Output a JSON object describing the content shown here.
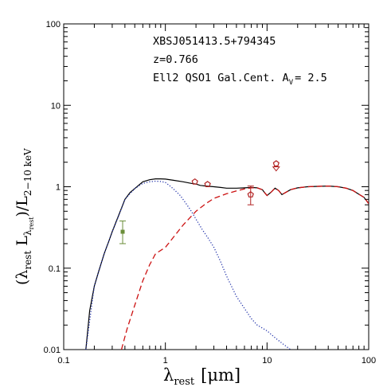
{
  "chart_data": {
    "type": "line",
    "title": "",
    "annotations": {
      "source_name": "XBSJ051413.5+794345",
      "redshift": "z=0.766",
      "model_prefix": "Ell2 QSO1 Gal.Cent. A",
      "model_sub": "V",
      "model_value": "= 2.5"
    },
    "xlabel": {
      "base": "λ",
      "sub": "rest",
      "unit": "[μm]"
    },
    "ylabel": {
      "open": "(λ",
      "sub1": "rest",
      "mid": " L",
      "sub2": "λ",
      "subsub2": "rest",
      "close": ")/L",
      "sub3": "2−10 keV"
    },
    "x_scale": "log",
    "y_scale": "log",
    "xlim": [
      0.1,
      100
    ],
    "ylim": [
      0.01,
      100
    ],
    "x_ticks": [
      {
        "value": 0.1,
        "label": "0.1"
      },
      {
        "value": 1,
        "label": "1"
      },
      {
        "value": 10,
        "label": "10"
      },
      {
        "value": 100,
        "label": "100"
      }
    ],
    "y_ticks": [
      {
        "value": 0.01,
        "label": "0.01"
      },
      {
        "value": 0.1,
        "label": "0.1"
      },
      {
        "value": 1,
        "label": "1"
      },
      {
        "value": 10,
        "label": "10"
      },
      {
        "value": 100,
        "label": "100"
      }
    ],
    "grid": false,
    "legend": "none",
    "series": [
      {
        "style": "solid",
        "color": "#000000",
        "x": [
          0.165,
          0.18,
          0.2,
          0.22,
          0.25,
          0.28,
          0.3,
          0.33,
          0.36,
          0.4,
          0.45,
          0.5,
          0.55,
          0.6,
          0.7,
          0.8,
          0.9,
          1.0,
          1.2,
          1.5,
          1.8,
          2.0,
          2.2,
          2.5,
          3.0,
          3.5,
          4.0,
          5.0,
          6.0,
          7.0,
          8.0,
          9.0,
          9.5,
          10.0,
          11.0,
          12.0,
          13.0,
          14.0,
          15.0,
          17.0,
          20.0,
          25.0,
          30.0,
          40.0,
          50.0,
          60.0,
          70.0,
          80.0,
          90.0,
          100.0
        ],
        "y": [
          0.01,
          0.03,
          0.06,
          0.09,
          0.15,
          0.22,
          0.28,
          0.38,
          0.5,
          0.7,
          0.85,
          0.95,
          1.05,
          1.15,
          1.22,
          1.25,
          1.25,
          1.24,
          1.2,
          1.15,
          1.1,
          1.08,
          1.04,
          1.02,
          1.0,
          0.98,
          0.96,
          0.96,
          0.97,
          0.98,
          0.97,
          0.92,
          0.84,
          0.78,
          0.86,
          0.96,
          0.9,
          0.8,
          0.84,
          0.92,
          0.97,
          1.0,
          1.01,
          1.02,
          1.0,
          0.96,
          0.9,
          0.81,
          0.74,
          0.62
        ]
      },
      {
        "style": "dotted",
        "color": "#2233aa",
        "x": [
          0.165,
          0.2,
          0.25,
          0.3,
          0.35,
          0.4,
          0.5,
          0.6,
          0.7,
          0.8,
          0.9,
          1.0,
          1.1,
          1.2,
          1.4,
          1.6,
          1.8,
          2.0,
          2.3,
          2.6,
          3.0,
          3.5,
          4.0,
          5.0,
          6.0,
          7.0,
          8.0,
          10.0,
          12.0,
          14.0,
          17.0
        ],
        "y": [
          0.01,
          0.06,
          0.15,
          0.28,
          0.45,
          0.7,
          0.95,
          1.1,
          1.15,
          1.17,
          1.16,
          1.13,
          1.03,
          0.94,
          0.78,
          0.62,
          0.5,
          0.4,
          0.3,
          0.24,
          0.18,
          0.12,
          0.08,
          0.045,
          0.032,
          0.024,
          0.02,
          0.017,
          0.014,
          0.012,
          0.01
        ]
      },
      {
        "style": "dashed",
        "color": "#cc1111",
        "x": [
          0.37,
          0.42,
          0.5,
          0.6,
          0.7,
          0.8,
          1.0,
          1.2,
          1.5,
          2.0,
          2.5,
          3.0,
          4.0,
          5.0,
          6.0,
          7.0,
          8.0,
          9.0,
          9.5,
          10.0,
          11.0,
          12.0,
          13.0,
          14.0,
          15.0,
          17.0,
          20.0,
          25.0,
          30.0,
          40.0,
          50.0,
          60.0,
          70.0,
          80.0,
          90.0,
          100.0
        ],
        "y": [
          0.01,
          0.018,
          0.035,
          0.07,
          0.11,
          0.15,
          0.18,
          0.24,
          0.34,
          0.5,
          0.62,
          0.72,
          0.82,
          0.89,
          0.94,
          0.97,
          0.97,
          0.92,
          0.84,
          0.78,
          0.86,
          0.96,
          0.9,
          0.8,
          0.84,
          0.92,
          0.97,
          1.0,
          1.01,
          1.02,
          1.0,
          0.96,
          0.9,
          0.81,
          0.74,
          0.62
        ]
      }
    ],
    "data_points": [
      {
        "x": 0.38,
        "y": 0.28,
        "y_low": 0.2,
        "y_high": 0.38,
        "marker": "filled-square",
        "color": "#6b8e3a"
      },
      {
        "x": 1.95,
        "y": 1.15,
        "marker": "open-pentagon",
        "color": "#b22222"
      },
      {
        "x": 2.6,
        "y": 1.07,
        "marker": "open-pentagon",
        "color": "#b22222"
      },
      {
        "x": 6.9,
        "y": 0.8,
        "y_low": 0.6,
        "y_high": 1.02,
        "marker": "open-pentagon",
        "color": "#b22222"
      },
      {
        "x": 12.3,
        "y": 1.92,
        "marker": "open-pentagon-arrow-down",
        "color": "#b22222"
      }
    ]
  }
}
